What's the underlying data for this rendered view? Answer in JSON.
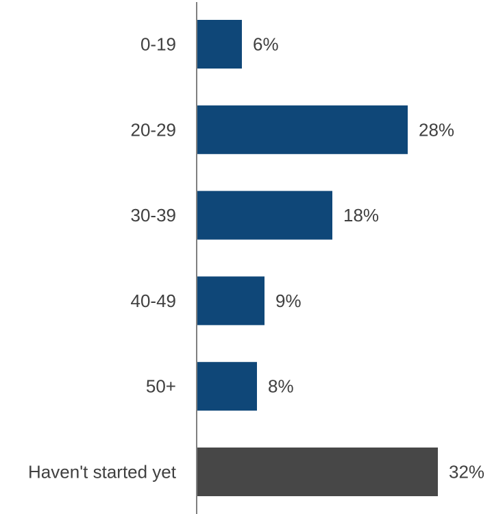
{
  "chart_data": {
    "type": "bar",
    "orientation": "horizontal",
    "categories": [
      "0-19",
      "20-29",
      "30-39",
      "40-49",
      "50+",
      "Haven't started yet"
    ],
    "values": [
      6,
      28,
      18,
      9,
      8,
      32
    ],
    "value_labels": [
      "6%",
      "28%",
      "18%",
      "9%",
      "8%",
      "32%"
    ],
    "unit": "%",
    "xlim": [
      0,
      32
    ],
    "grid": false,
    "legend": "none",
    "colors": {
      "primary": "#0f4778",
      "highlight": "#474747",
      "axis": "#7f7f7f",
      "text": "#404040"
    },
    "highlight_categories": [
      "Haven't started yet"
    ]
  }
}
